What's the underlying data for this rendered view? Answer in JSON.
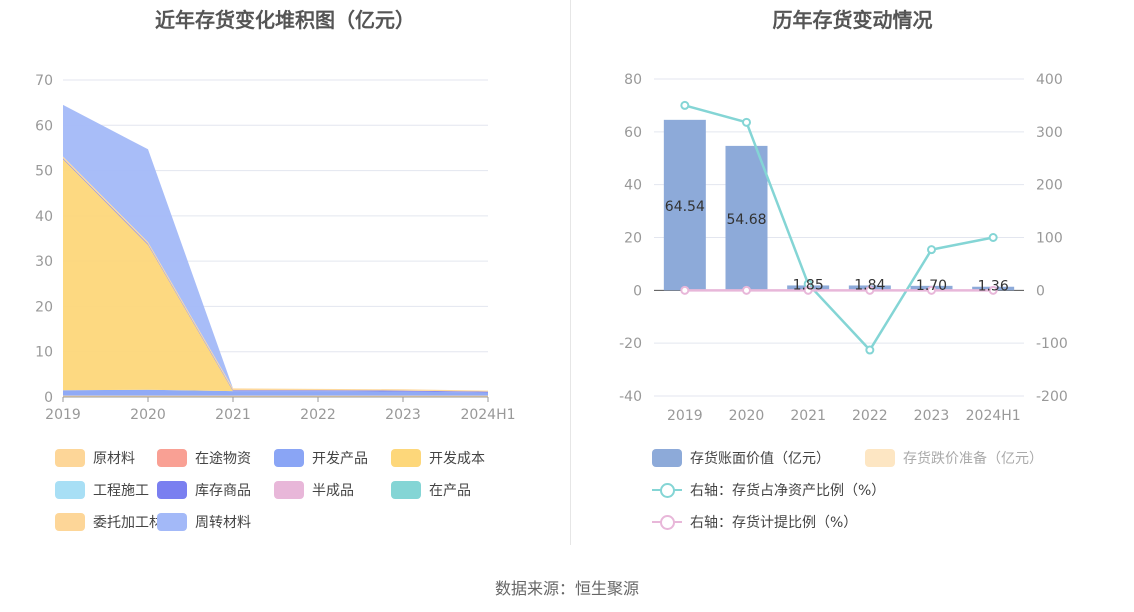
{
  "source": "数据来源：恒生聚源",
  "chart_data": [
    {
      "type": "area",
      "stacked": true,
      "title": "近年存货变化堆积图（亿元）",
      "categories": [
        "2019",
        "2020",
        "2021",
        "2022",
        "2023",
        "2024H1"
      ],
      "ylim": [
        0,
        70
      ],
      "yticks": [
        0,
        10,
        20,
        30,
        40,
        50,
        60,
        70
      ],
      "grid": true,
      "legend_position": "bottom",
      "series": [
        {
          "name": "原材料",
          "color": "#fdd698",
          "values": [
            0.3,
            0.3,
            0.3,
            0.3,
            0.3,
            0.3
          ]
        },
        {
          "name": "在途物资",
          "color": "#f9a094",
          "values": [
            0,
            0,
            0,
            0,
            0,
            0
          ]
        },
        {
          "name": "开发产品",
          "color": "#8aa5f5",
          "values": [
            1.2,
            1.3,
            1.0,
            1.0,
            0.9,
            0.7
          ]
        },
        {
          "name": "开发成本",
          "color": "#fdd77a",
          "values": [
            51.0,
            32.0,
            0,
            0,
            0,
            0
          ]
        },
        {
          "name": "工程施工",
          "color": "#a8dff5",
          "values": [
            0,
            0,
            0,
            0,
            0,
            0
          ]
        },
        {
          "name": "库存商品",
          "color": "#7a7ff0",
          "values": [
            0.2,
            0.2,
            0.2,
            0.2,
            0.2,
            0.2
          ]
        },
        {
          "name": "半成品",
          "color": "#e8b7d9",
          "values": [
            0,
            0,
            0,
            0,
            0,
            0
          ]
        },
        {
          "name": "在产品",
          "color": "#84d5d5",
          "values": [
            0,
            0,
            0,
            0,
            0,
            0
          ]
        },
        {
          "name": "委托加工材料",
          "color": "#fdd698",
          "values": [
            0.4,
            0.4,
            0.4,
            0.3,
            0.3,
            0.2
          ]
        },
        {
          "name": "周转材料",
          "color": "#a3b9f8",
          "values": [
            11.4,
            20.5,
            0,
            0,
            0,
            0
          ]
        }
      ]
    },
    {
      "type": "bar",
      "title": "历年存货变动情况",
      "categories": [
        "2019",
        "2020",
        "2021",
        "2022",
        "2023",
        "2024H1"
      ],
      "y_left": {
        "range": [
          -40,
          80
        ],
        "ticks": [
          -40,
          -20,
          0,
          20,
          40,
          60,
          80
        ]
      },
      "y_right": {
        "range": [
          -200,
          400
        ],
        "ticks": [
          -200,
          -100,
          0,
          100,
          200,
          300,
          400
        ]
      },
      "grid": true,
      "legend_position": "bottom",
      "bars": [
        {
          "name": "存货账面价值（亿元）",
          "color": "#8daad9",
          "values": [
            64.54,
            54.68,
            1.85,
            1.84,
            1.7,
            1.36
          ],
          "labels": [
            "64.54",
            "54.68",
            "1.85",
            "1.84",
            "1.70",
            "1.36"
          ]
        },
        {
          "name": "存货跌价准备（亿元）",
          "color": "#fde6c3",
          "values": [
            0,
            0,
            0,
            0,
            0,
            0
          ]
        }
      ],
      "lines": [
        {
          "name": "右轴：存货占净资产比例（%）",
          "color": "#84d5d5",
          "axis": "right",
          "values": [
            350,
            318,
            12,
            -113,
            77,
            100
          ]
        },
        {
          "name": "右轴：存货计提比例（%）",
          "color": "#e8b7d9",
          "axis": "right",
          "values": [
            0,
            0,
            0,
            0,
            0,
            0
          ]
        }
      ]
    }
  ]
}
